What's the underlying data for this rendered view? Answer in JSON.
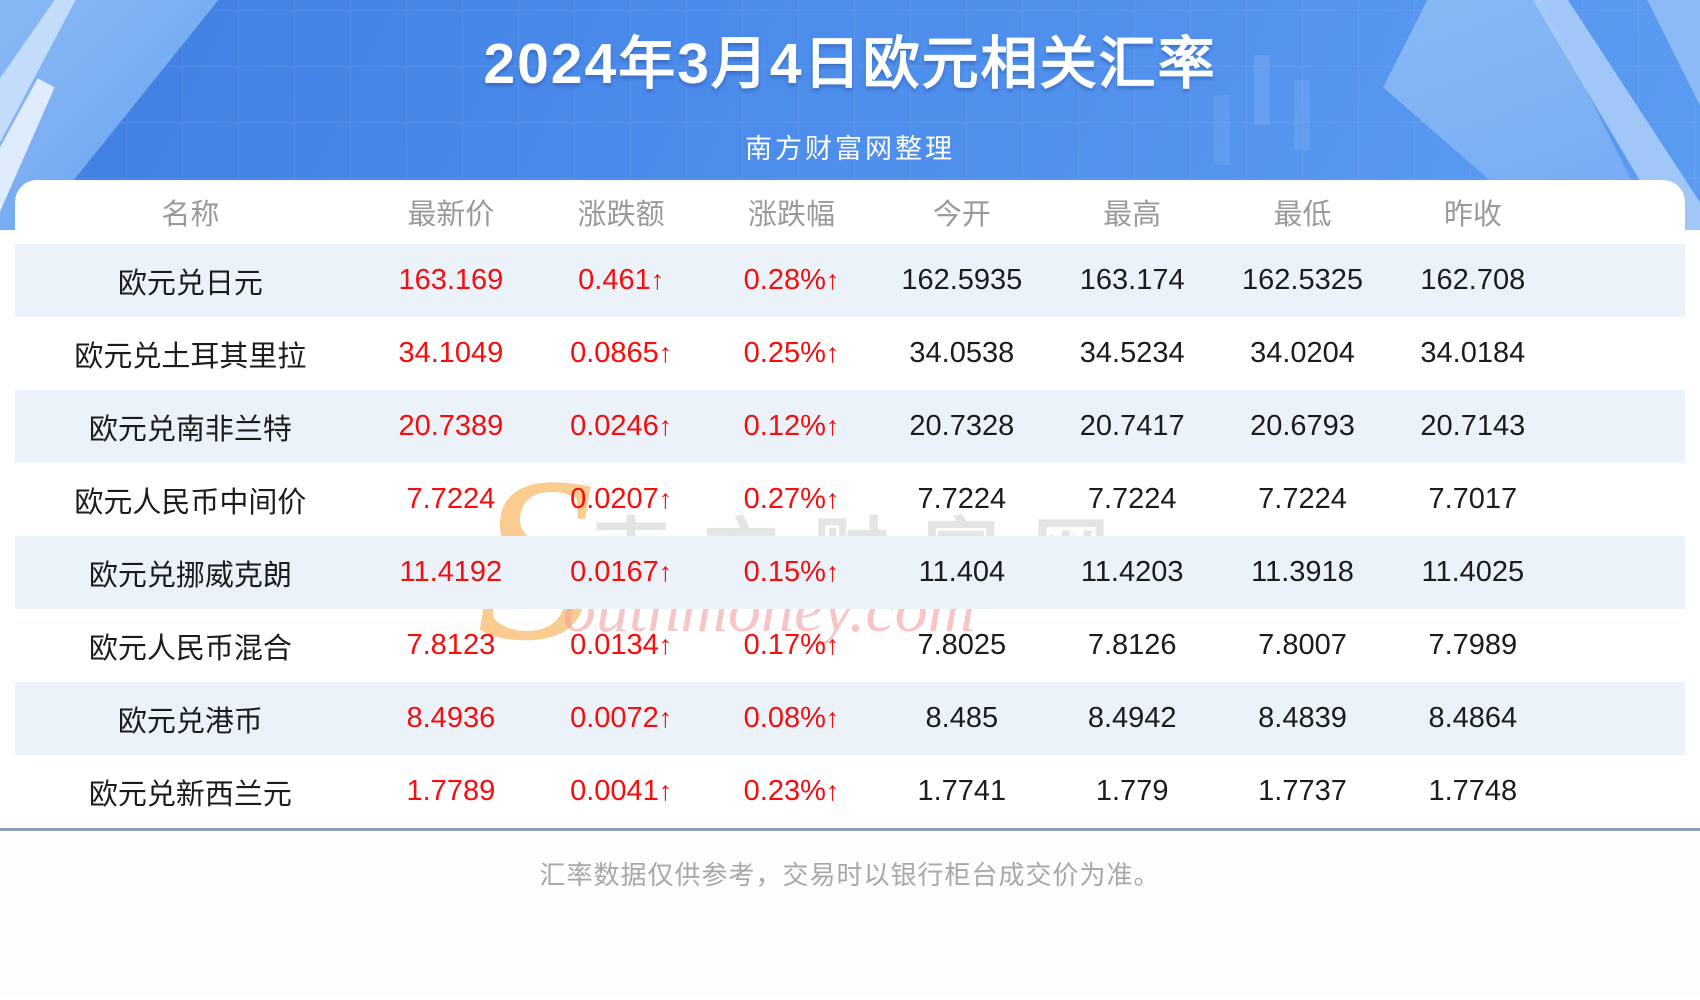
{
  "page": {
    "title": "2024年3月4日欧元相关汇率",
    "subtitle": "南方财富网整理",
    "footer_note": "汇率数据仅供参考，交易时以银行柜台成交价为准。"
  },
  "watermark": {
    "initial": "S",
    "cn": "南方财富网",
    "en": "outhmoney.com"
  },
  "colors": {
    "hero_blue": "#4c8ceb",
    "row_alt_bg": "#ebf2fa",
    "up_red": "#f70d0d",
    "header_text": "#9a9a9a",
    "value_text": "#1c1c1c",
    "divider": "#8ba0b6"
  },
  "chart_data": {
    "type": "table",
    "title": "2024年3月4日欧元相关汇率",
    "up_arrow": "↑",
    "columns": [
      "名称",
      "最新价",
      "涨跌额",
      "涨跌幅",
      "今开",
      "最高",
      "最低",
      "昨收"
    ],
    "rows": [
      {
        "name": "欧元兑日元",
        "last": "163.169",
        "change": "0.461",
        "change_pct": "0.28%",
        "open": "162.5935",
        "high": "163.174",
        "low": "162.5325",
        "prev_close": "162.708"
      },
      {
        "name": "欧元兑土耳其里拉",
        "last": "34.1049",
        "change": "0.0865",
        "change_pct": "0.25%",
        "open": "34.0538",
        "high": "34.5234",
        "low": "34.0204",
        "prev_close": "34.0184"
      },
      {
        "name": "欧元兑南非兰特",
        "last": "20.7389",
        "change": "0.0246",
        "change_pct": "0.12%",
        "open": "20.7328",
        "high": "20.7417",
        "low": "20.6793",
        "prev_close": "20.7143"
      },
      {
        "name": "欧元人民币中间价",
        "last": "7.7224",
        "change": "0.0207",
        "change_pct": "0.27%",
        "open": "7.7224",
        "high": "7.7224",
        "low": "7.7224",
        "prev_close": "7.7017"
      },
      {
        "name": "欧元兑挪威克朗",
        "last": "11.4192",
        "change": "0.0167",
        "change_pct": "0.15%",
        "open": "11.404",
        "high": "11.4203",
        "low": "11.3918",
        "prev_close": "11.4025"
      },
      {
        "name": "欧元人民币混合",
        "last": "7.8123",
        "change": "0.0134",
        "change_pct": "0.17%",
        "open": "7.8025",
        "high": "7.8126",
        "low": "7.8007",
        "prev_close": "7.7989"
      },
      {
        "name": "欧元兑港币",
        "last": "8.4936",
        "change": "0.0072",
        "change_pct": "0.08%",
        "open": "8.485",
        "high": "8.4942",
        "low": "8.4839",
        "prev_close": "8.4864"
      },
      {
        "name": "欧元兑新西兰元",
        "last": "1.7789",
        "change": "0.0041",
        "change_pct": "0.23%",
        "open": "1.7741",
        "high": "1.779",
        "low": "1.7737",
        "prev_close": "1.7748"
      }
    ]
  }
}
